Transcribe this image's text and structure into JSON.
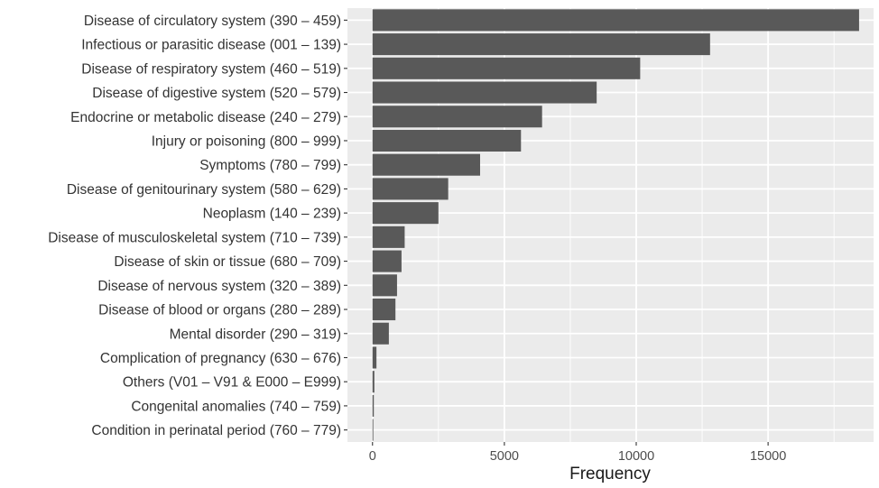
{
  "chart_data": {
    "type": "bar",
    "orientation": "horizontal",
    "title": "",
    "xlabel": "Frequency",
    "ylabel": "",
    "xlim": [
      -950,
      19000
    ],
    "xticks": [
      0,
      5000,
      10000,
      15000
    ],
    "xtick_labels": [
      "0",
      "5000",
      "10000",
      "15000"
    ],
    "grid": true,
    "legend": "none",
    "bar_color": "#595959",
    "panel_color": "#ebebeb",
    "categories": [
      "Disease of circulatory system (390 – 459)",
      "Infectious or parasitic disease (001 – 139)",
      "Disease of respiratory system (460 – 519)",
      "Disease of digestive system (520 – 579)",
      "Endocrine or metabolic disease (240 – 279)",
      "Injury or poisoning (800 – 999)",
      "Symptoms (780 – 799)",
      "Disease of genitourinary system (580 – 629)",
      "Neoplasm (140 – 239)",
      "Disease of musculoskeletal system (710 – 739)",
      "Disease of skin or tissue (680 – 709)",
      "Disease of nervous system (320 – 389)",
      "Disease of blood or organs (280 – 289)",
      "Mental disorder (290 – 319)",
      "Complication of pregnancy (630 – 676)",
      "Others (V01 – V91 & E000 – E999)",
      "Congenital anomalies (740 – 759)",
      "Condition in perinatal period (760 – 779)"
    ],
    "values": [
      18450,
      12800,
      10150,
      8500,
      6430,
      5630,
      4080,
      2870,
      2500,
      1220,
      1100,
      930,
      870,
      620,
      150,
      70,
      50,
      30
    ]
  }
}
